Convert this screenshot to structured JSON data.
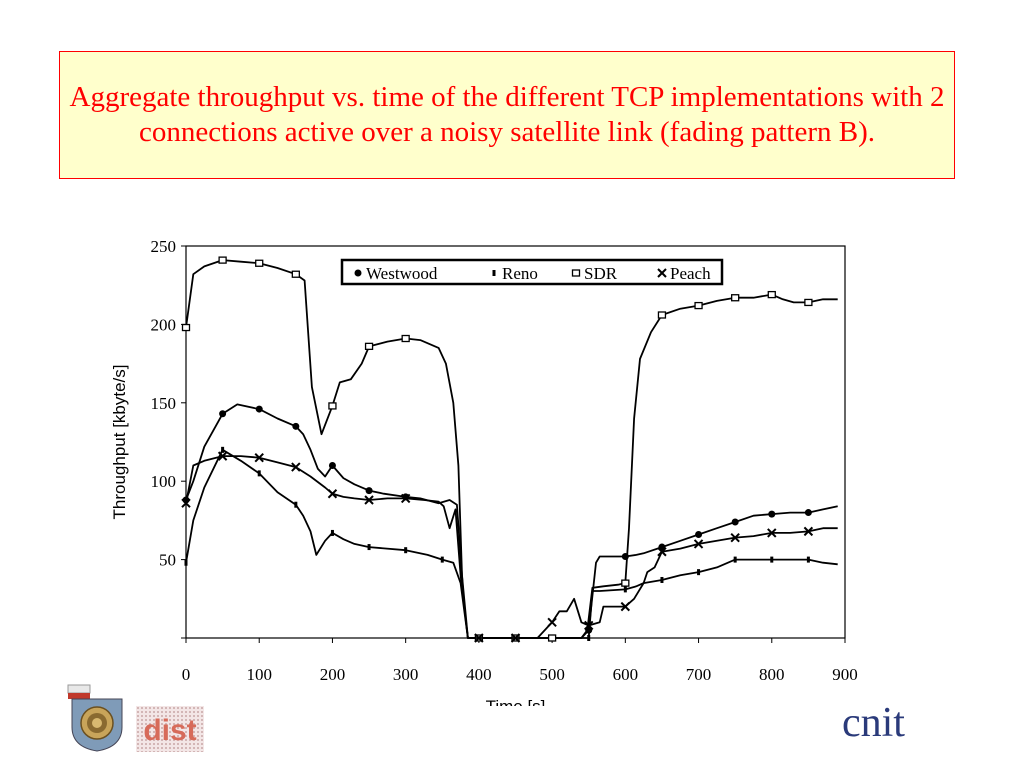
{
  "title": "Aggregate throughput vs. time of the different TCP implementations with 2 connections active over a noisy satellite link (fading pattern B).",
  "logos": {
    "right": "cnit",
    "middle": "dist"
  },
  "chart_data": {
    "type": "line",
    "xlabel": "Time [s]",
    "ylabel": "Throughput [kbyte/s]",
    "xlim": [
      0,
      900
    ],
    "ylim": [
      0,
      250
    ],
    "xticks": [
      0,
      100,
      200,
      300,
      400,
      500,
      600,
      700,
      800,
      900
    ],
    "yticks": [
      50,
      100,
      150,
      200,
      250
    ],
    "grid": false,
    "legend_position": "top",
    "series": [
      {
        "name": "Westwood",
        "marker": "circle",
        "points": [
          [
            0,
            88
          ],
          [
            10,
            100
          ],
          [
            25,
            122
          ],
          [
            50,
            143
          ],
          [
            70,
            149
          ],
          [
            100,
            146
          ],
          [
            125,
            140
          ],
          [
            150,
            135
          ],
          [
            160,
            130
          ],
          [
            170,
            120
          ],
          [
            180,
            108
          ],
          [
            190,
            103
          ],
          [
            200,
            110
          ],
          [
            215,
            102
          ],
          [
            230,
            98
          ],
          [
            250,
            94
          ],
          [
            270,
            92
          ],
          [
            300,
            90
          ],
          [
            320,
            89
          ],
          [
            345,
            86
          ],
          [
            360,
            88
          ],
          [
            370,
            85
          ],
          [
            380,
            20
          ],
          [
            385,
            0
          ],
          [
            400,
            0
          ],
          [
            450,
            0
          ],
          [
            500,
            0
          ],
          [
            520,
            0
          ],
          [
            540,
            0
          ],
          [
            550,
            5
          ],
          [
            560,
            48
          ],
          [
            565,
            52
          ],
          [
            600,
            52
          ],
          [
            615,
            53
          ],
          [
            625,
            54
          ],
          [
            650,
            58
          ],
          [
            675,
            62
          ],
          [
            700,
            66
          ],
          [
            725,
            70
          ],
          [
            750,
            74
          ],
          [
            775,
            78
          ],
          [
            800,
            79
          ],
          [
            825,
            80
          ],
          [
            850,
            80
          ],
          [
            870,
            82
          ],
          [
            890,
            84
          ]
        ]
      },
      {
        "name": "Reno",
        "marker": "dash",
        "points": [
          [
            0,
            48
          ],
          [
            10,
            75
          ],
          [
            25,
            96
          ],
          [
            50,
            120
          ],
          [
            75,
            113
          ],
          [
            100,
            105
          ],
          [
            125,
            93
          ],
          [
            150,
            85
          ],
          [
            160,
            78
          ],
          [
            170,
            68
          ],
          [
            178,
            53
          ],
          [
            190,
            62
          ],
          [
            200,
            67
          ],
          [
            215,
            63
          ],
          [
            230,
            60
          ],
          [
            250,
            58
          ],
          [
            300,
            56
          ],
          [
            330,
            53
          ],
          [
            350,
            50
          ],
          [
            365,
            48
          ],
          [
            375,
            35
          ],
          [
            385,
            0
          ],
          [
            400,
            0
          ],
          [
            450,
            0
          ],
          [
            500,
            0
          ],
          [
            520,
            0
          ],
          [
            540,
            0
          ],
          [
            550,
            0
          ],
          [
            555,
            30
          ],
          [
            565,
            30
          ],
          [
            600,
            31
          ],
          [
            615,
            33
          ],
          [
            625,
            35
          ],
          [
            650,
            37
          ],
          [
            675,
            40
          ],
          [
            700,
            42
          ],
          [
            725,
            45
          ],
          [
            750,
            50
          ],
          [
            775,
            50
          ],
          [
            800,
            50
          ],
          [
            825,
            50
          ],
          [
            850,
            50
          ],
          [
            870,
            48
          ],
          [
            890,
            47
          ]
        ]
      },
      {
        "name": "SDR",
        "marker": "square",
        "points": [
          [
            0,
            198
          ],
          [
            10,
            232
          ],
          [
            25,
            237
          ],
          [
            50,
            241
          ],
          [
            75,
            240
          ],
          [
            100,
            239
          ],
          [
            125,
            236
          ],
          [
            150,
            232
          ],
          [
            162,
            228
          ],
          [
            172,
            160
          ],
          [
            185,
            130
          ],
          [
            200,
            148
          ],
          [
            210,
            163
          ],
          [
            225,
            165
          ],
          [
            240,
            175
          ],
          [
            250,
            186
          ],
          [
            275,
            189
          ],
          [
            300,
            191
          ],
          [
            320,
            190
          ],
          [
            345,
            185
          ],
          [
            355,
            175
          ],
          [
            365,
            150
          ],
          [
            372,
            110
          ],
          [
            377,
            40
          ],
          [
            385,
            0
          ],
          [
            400,
            0
          ],
          [
            450,
            0
          ],
          [
            500,
            0
          ],
          [
            520,
            0
          ],
          [
            540,
            0
          ],
          [
            548,
            5
          ],
          [
            555,
            32
          ],
          [
            570,
            33
          ],
          [
            590,
            34
          ],
          [
            600,
            35
          ],
          [
            605,
            70
          ],
          [
            612,
            140
          ],
          [
            620,
            178
          ],
          [
            635,
            195
          ],
          [
            650,
            206
          ],
          [
            675,
            210
          ],
          [
            700,
            212
          ],
          [
            725,
            215
          ],
          [
            750,
            217
          ],
          [
            775,
            217
          ],
          [
            800,
            219
          ],
          [
            815,
            216
          ],
          [
            830,
            214
          ],
          [
            850,
            214
          ],
          [
            870,
            216
          ],
          [
            890,
            216
          ]
        ]
      },
      {
        "name": "Peach",
        "marker": "x",
        "points": [
          [
            0,
            86
          ],
          [
            10,
            110
          ],
          [
            25,
            113
          ],
          [
            50,
            116
          ],
          [
            75,
            116
          ],
          [
            100,
            115
          ],
          [
            125,
            112
          ],
          [
            150,
            109
          ],
          [
            170,
            103
          ],
          [
            190,
            96
          ],
          [
            200,
            92
          ],
          [
            215,
            90
          ],
          [
            230,
            89
          ],
          [
            250,
            88
          ],
          [
            275,
            89
          ],
          [
            300,
            89
          ],
          [
            325,
            88
          ],
          [
            345,
            87
          ],
          [
            352,
            84
          ],
          [
            360,
            70
          ],
          [
            368,
            82
          ],
          [
            375,
            40
          ],
          [
            385,
            0
          ],
          [
            400,
            0
          ],
          [
            450,
            0
          ],
          [
            480,
            0
          ],
          [
            500,
            10
          ],
          [
            510,
            17
          ],
          [
            520,
            17
          ],
          [
            530,
            25
          ],
          [
            540,
            10
          ],
          [
            550,
            8
          ],
          [
            565,
            10
          ],
          [
            570,
            20
          ],
          [
            580,
            20
          ],
          [
            600,
            20
          ],
          [
            612,
            25
          ],
          [
            625,
            35
          ],
          [
            630,
            42
          ],
          [
            640,
            45
          ],
          [
            650,
            55
          ],
          [
            675,
            57
          ],
          [
            700,
            60
          ],
          [
            725,
            62
          ],
          [
            750,
            64
          ],
          [
            775,
            65
          ],
          [
            800,
            67
          ],
          [
            825,
            67
          ],
          [
            850,
            68
          ],
          [
            870,
            70
          ],
          [
            890,
            70
          ]
        ]
      }
    ]
  }
}
